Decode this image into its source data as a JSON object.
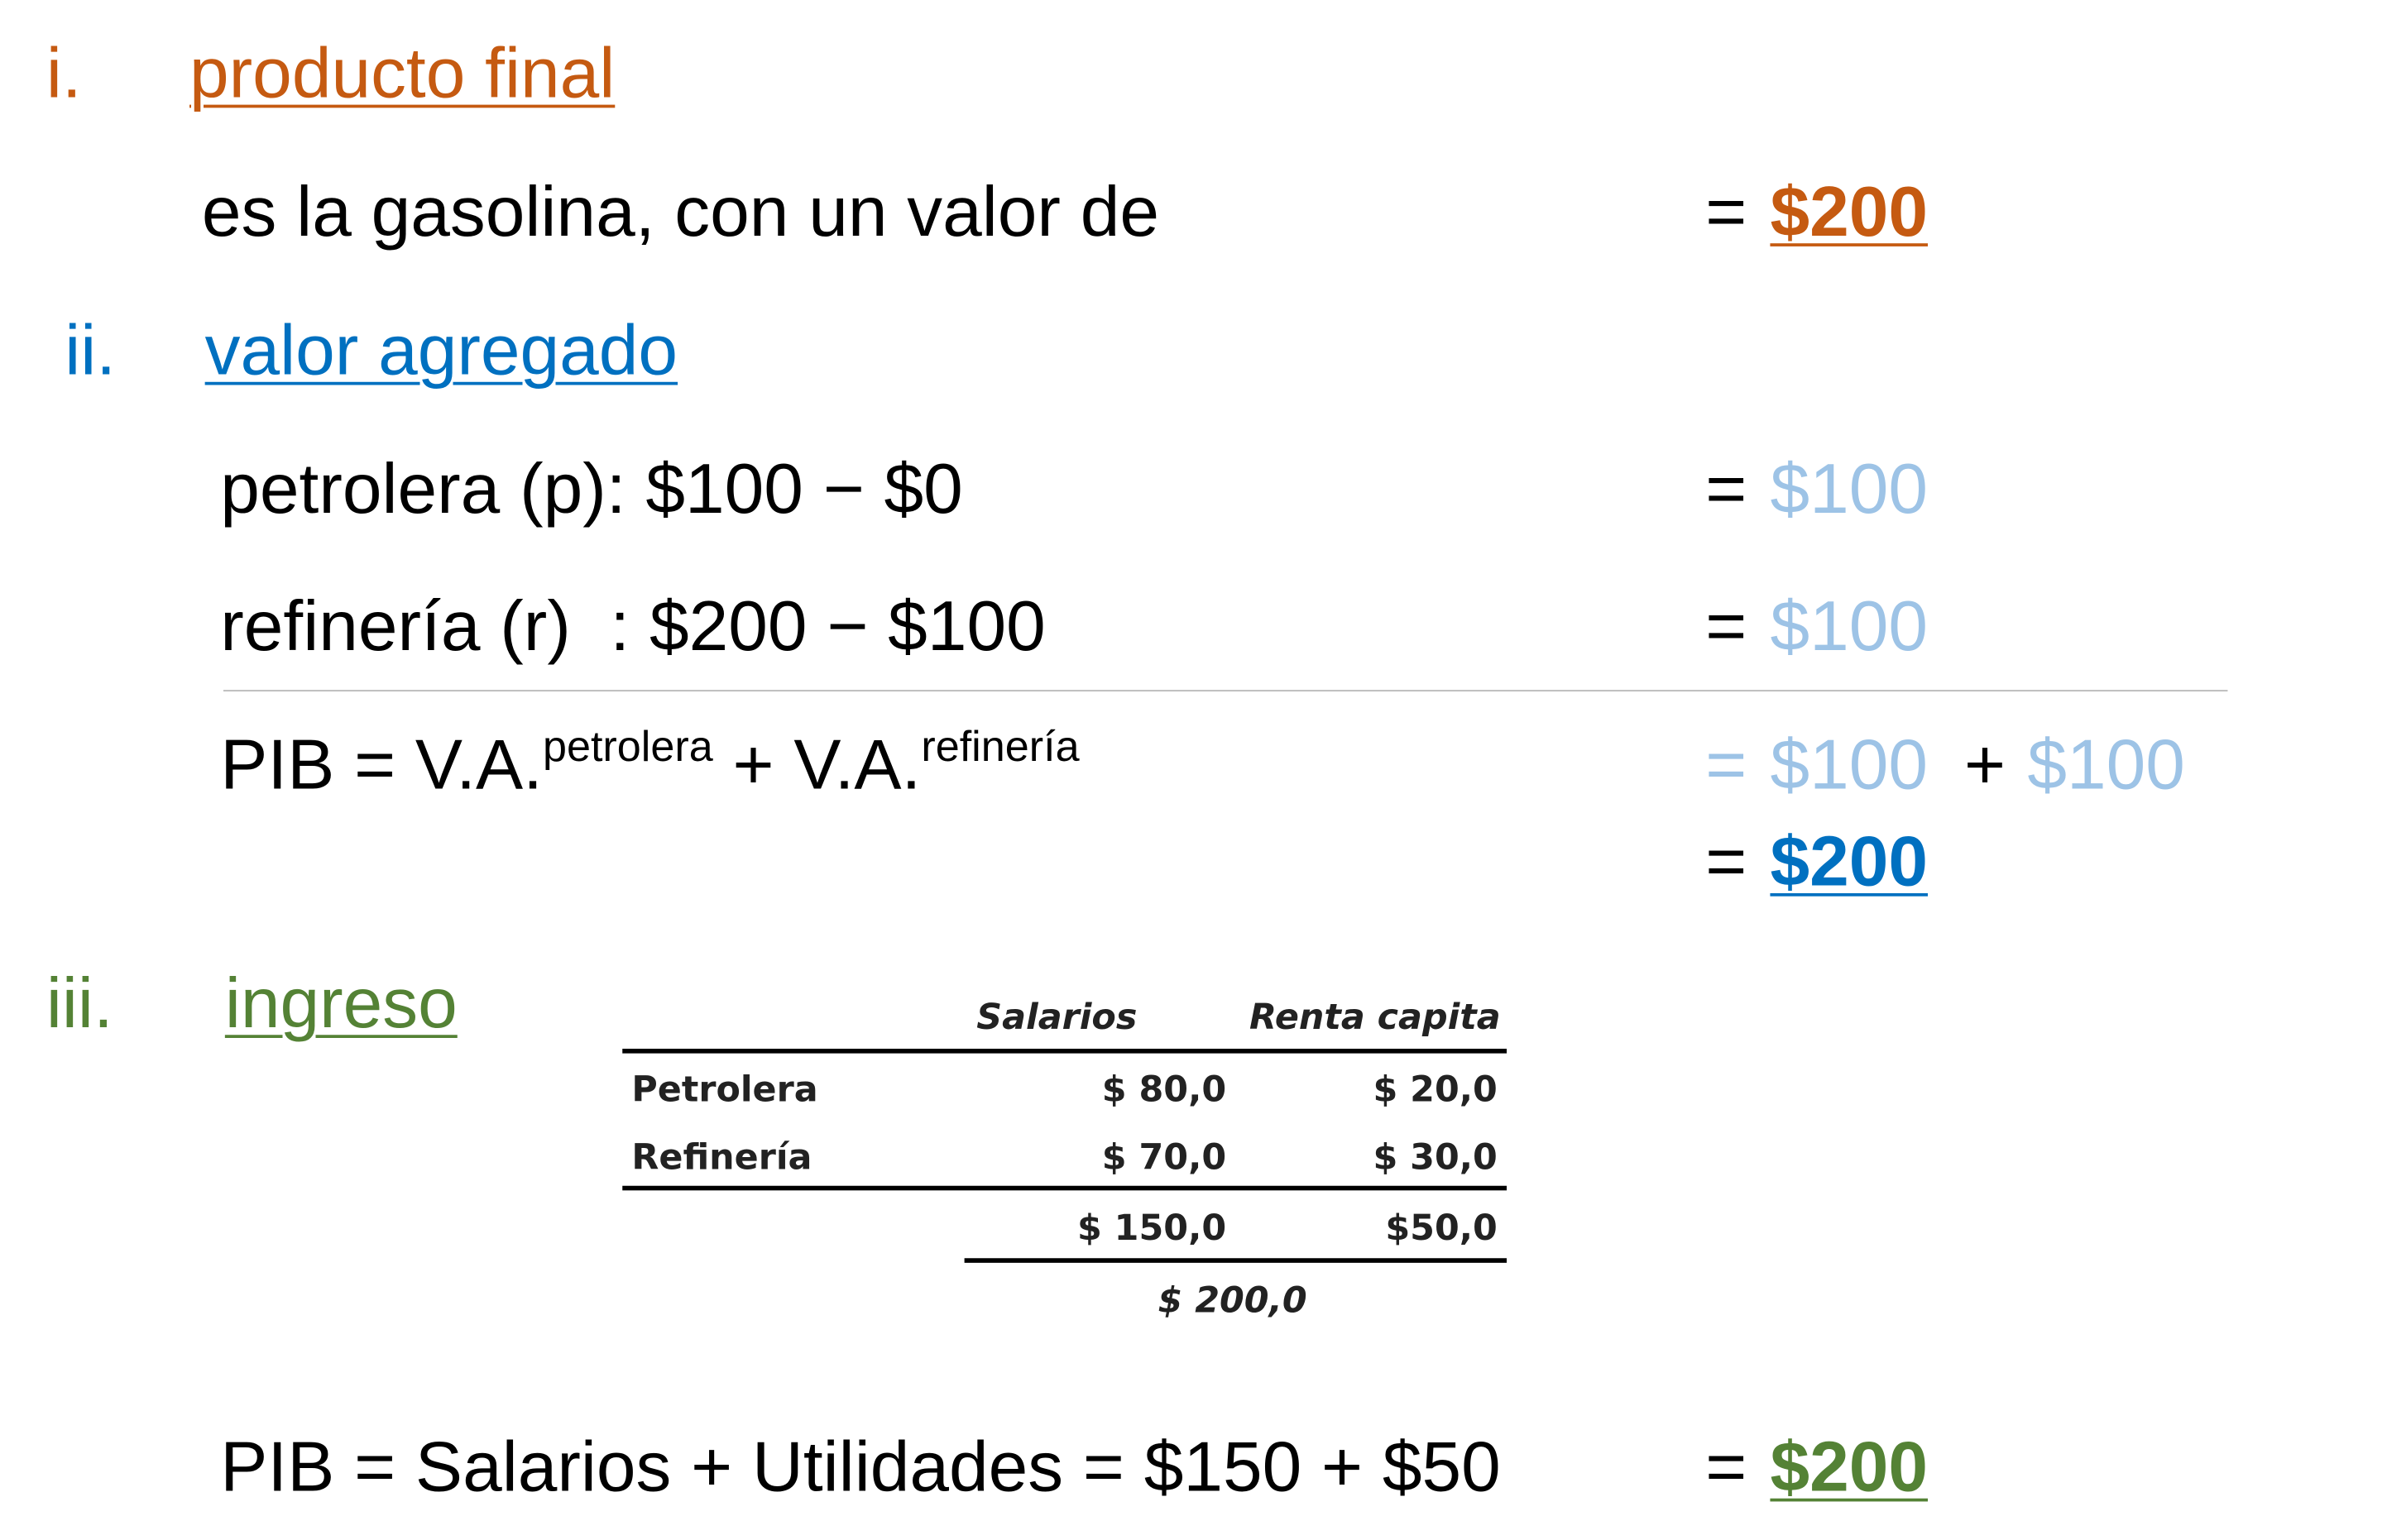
{
  "section_i": {
    "marker": "i.",
    "title": "producto final",
    "text": "es la gasolina, con un valor de",
    "eq": "=",
    "result": "$200"
  },
  "section_ii": {
    "marker": "ii.",
    "title": "valor agregado",
    "rows": [
      {
        "text": "petrolera (p): $100 − $0",
        "eq": "=",
        "result": "$100"
      },
      {
        "text": "refinería (r)  : $200 − $100",
        "eq": "=",
        "result": "$100"
      }
    ],
    "pib": {
      "lhs": "PIB = V.A.",
      "sup1": "petrolera",
      "mid": " + V.A.",
      "sup2": "refinería",
      "eq": "=",
      "term1": "$100",
      "plus": "+",
      "term2": "$100",
      "eq2": "=",
      "result": "$200"
    }
  },
  "section_iii": {
    "marker": "iii.",
    "title": "ingreso",
    "table": {
      "headers": [
        "Salarios",
        "Renta capita"
      ],
      "rows": [
        [
          "Petrolera",
          "$ 80,0",
          "$ 20,0"
        ],
        [
          "Refinería",
          "$ 70,0",
          "$ 30,0"
        ]
      ],
      "totals": [
        "$ 150,0",
        "$50,0"
      ],
      "grand_total": "$ 200,0"
    },
    "pib": {
      "text": "PIB = Salarios + Utilidades = $150 + $50",
      "eq": "=",
      "result": "$200"
    }
  }
}
